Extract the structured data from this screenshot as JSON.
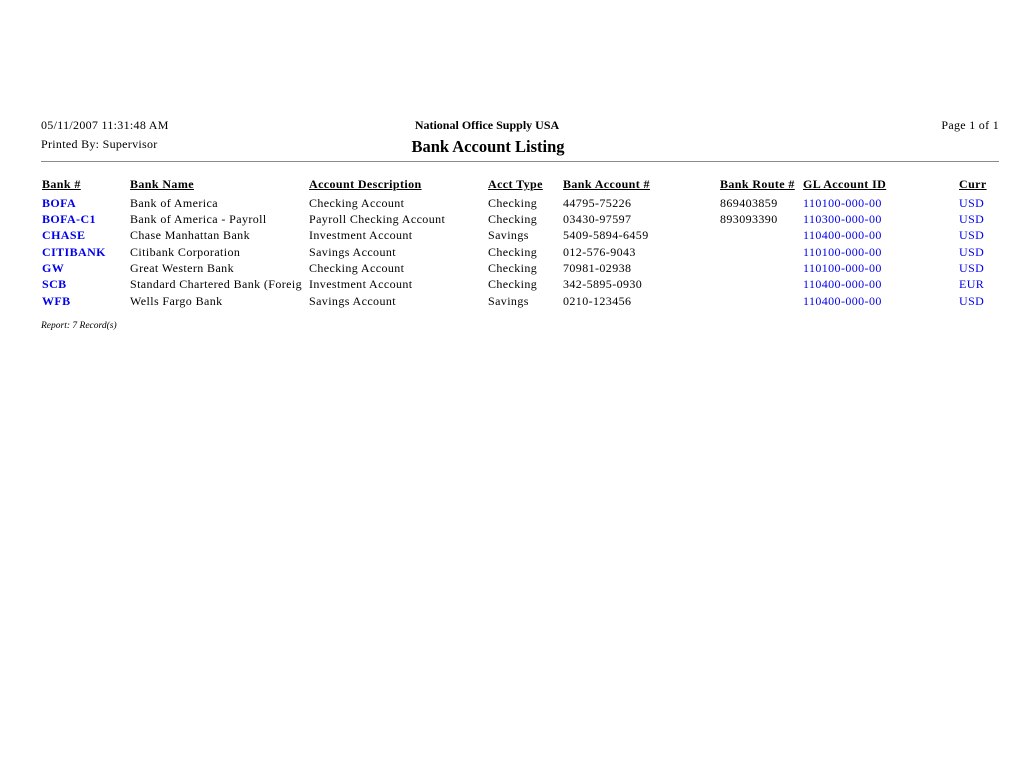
{
  "header": {
    "datetime": "05/11/2007   11:31:48 AM",
    "printed_by": "Printed By: Supervisor",
    "company": "National Office Supply USA",
    "title": "Bank Account Listing",
    "page": "Page 1 of  1"
  },
  "table": {
    "columns": [
      "Bank #",
      "Bank Name",
      "Account Description",
      "Acct Type",
      "Bank Account #",
      "Bank Route #",
      "GL Account ID",
      "Curr"
    ],
    "rows": [
      [
        "BOFA",
        "Bank of America",
        "Checking Account",
        "Checking",
        "44795-75226",
        "869403859",
        "110100-000-00",
        "USD"
      ],
      [
        "BOFA-C1",
        "Bank of America - Payroll",
        "Payroll Checking Account",
        "Checking",
        "03430-97597",
        "893093390",
        "110300-000-00",
        "USD"
      ],
      [
        "CHASE",
        "Chase Manhattan Bank",
        "Investment Account",
        "Savings",
        "5409-5894-6459",
        "",
        "110400-000-00",
        "USD"
      ],
      [
        "CITIBANK",
        "Citibank Corporation",
        "Savings Account",
        "Checking",
        "012-576-9043",
        "",
        "110100-000-00",
        "USD"
      ],
      [
        "GW",
        "Great Western Bank",
        "Checking Account",
        "Checking",
        "70981-02938",
        "",
        "110100-000-00",
        "USD"
      ],
      [
        "SCB",
        "Standard Chartered Bank (Foreig",
        "Investment Account",
        "Checking",
        "342-5895-0930",
        "",
        "110400-000-00",
        "EUR"
      ],
      [
        "WFB",
        "Wells Fargo Bank",
        "Savings Account",
        "Savings",
        "0210-123456",
        "",
        "110400-000-00",
        "USD"
      ]
    ]
  },
  "footer": "Report: 7 Record(s)",
  "colors": {
    "link": "#0000ee",
    "rule": "#8a8a8a"
  }
}
